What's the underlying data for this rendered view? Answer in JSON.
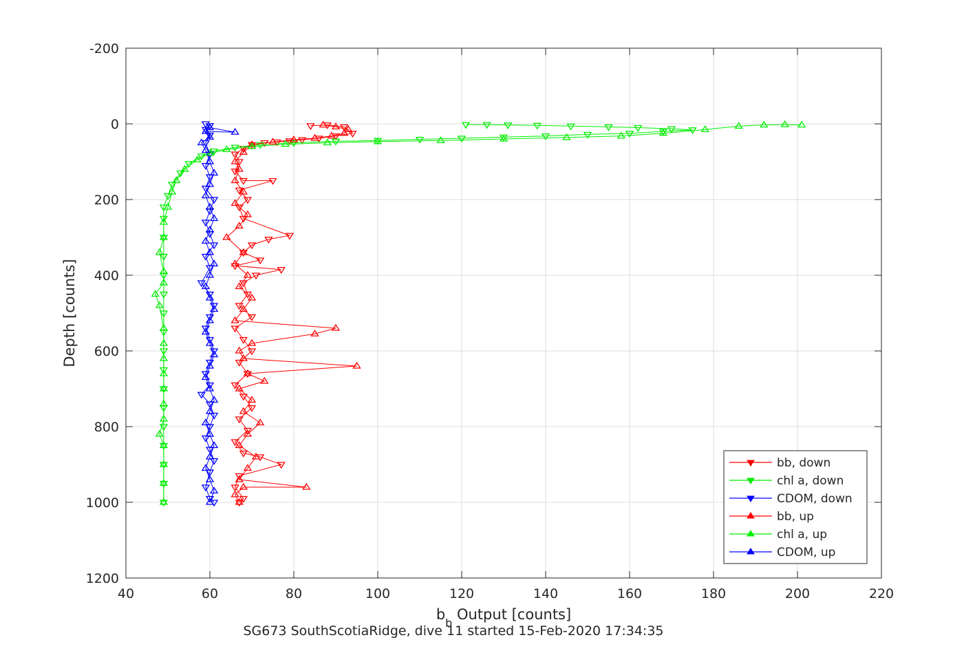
{
  "chart_data": {
    "type": "scatter",
    "xlabel": "b",
    "xlabel_sub": "b",
    "xlabel_rest": " Output [counts]",
    "ylabel": "Depth [counts]",
    "caption": "SG673 SouthScotiaRidge, dive 11 started 15-Feb-2020 17:34:35",
    "xlim": [
      40,
      220
    ],
    "ylim": [
      -200,
      1200
    ],
    "y_reversed": true,
    "grid": true,
    "legend_placement": "bottom-right",
    "x_ticks": [
      "40",
      "60",
      "80",
      "100",
      "120",
      "140",
      "160",
      "180",
      "200",
      "220"
    ],
    "y_ticks": [
      "-200",
      "0",
      "200",
      "400",
      "600",
      "800",
      "1000",
      "1200"
    ],
    "series": [
      {
        "name": "bb, down",
        "color": "#ff0000",
        "marker": "triangle-down",
        "points": [
          [
            84,
            5
          ],
          [
            88,
            3
          ],
          [
            92,
            8
          ],
          [
            94,
            25
          ],
          [
            90,
            32
          ],
          [
            86,
            38
          ],
          [
            82,
            42
          ],
          [
            79,
            45
          ],
          [
            76,
            48
          ],
          [
            73,
            50
          ],
          [
            70,
            55
          ],
          [
            68,
            65
          ],
          [
            66,
            80
          ],
          [
            67,
            100
          ],
          [
            66,
            125
          ],
          [
            68,
            150
          ],
          [
            75,
            150
          ],
          [
            67,
            175
          ],
          [
            69,
            200
          ],
          [
            67,
            220
          ],
          [
            68,
            250
          ],
          [
            79,
            295
          ],
          [
            74,
            305
          ],
          [
            70,
            320
          ],
          [
            68,
            340
          ],
          [
            72,
            360
          ],
          [
            66,
            375
          ],
          [
            77,
            385
          ],
          [
            71,
            400
          ],
          [
            68,
            420
          ],
          [
            69,
            450
          ],
          [
            67,
            480
          ],
          [
            70,
            510
          ],
          [
            66,
            540
          ],
          [
            68,
            570
          ],
          [
            70,
            600
          ],
          [
            67,
            630
          ],
          [
            69,
            660
          ],
          [
            66,
            690
          ],
          [
            68,
            720
          ],
          [
            70,
            750
          ],
          [
            67,
            780
          ],
          [
            69,
            810
          ],
          [
            66,
            840
          ],
          [
            68,
            870
          ],
          [
            72,
            880
          ],
          [
            77,
            900
          ],
          [
            67,
            930
          ],
          [
            66,
            960
          ],
          [
            68,
            990
          ],
          [
            67,
            1000
          ]
        ]
      },
      {
        "name": "chl a, down",
        "color": "#00ee00",
        "marker": "triangle-down",
        "points": [
          [
            121,
            2
          ],
          [
            126,
            2
          ],
          [
            131,
            3
          ],
          [
            138,
            4
          ],
          [
            146,
            6
          ],
          [
            155,
            8
          ],
          [
            162,
            10
          ],
          [
            170,
            13
          ],
          [
            175,
            16
          ],
          [
            168,
            20
          ],
          [
            160,
            25
          ],
          [
            150,
            28
          ],
          [
            140,
            32
          ],
          [
            130,
            35
          ],
          [
            120,
            38
          ],
          [
            110,
            41
          ],
          [
            100,
            44
          ],
          [
            90,
            46
          ],
          [
            80,
            50
          ],
          [
            72,
            55
          ],
          [
            66,
            62
          ],
          [
            61,
            72
          ],
          [
            58,
            85
          ],
          [
            55,
            105
          ],
          [
            53,
            130
          ],
          [
            51,
            160
          ],
          [
            50,
            190
          ],
          [
            49,
            220
          ],
          [
            49,
            250
          ],
          [
            49,
            300
          ],
          [
            49,
            350
          ],
          [
            49,
            400
          ],
          [
            49,
            450
          ],
          [
            49,
            500
          ],
          [
            49,
            550
          ],
          [
            49,
            600
          ],
          [
            49,
            650
          ],
          [
            49,
            700
          ],
          [
            49,
            750
          ],
          [
            49,
            800
          ],
          [
            49,
            850
          ],
          [
            49,
            900
          ],
          [
            49,
            950
          ],
          [
            49,
            1000
          ]
        ]
      },
      {
        "name": "CDOM, down",
        "color": "#0000ff",
        "marker": "triangle-down",
        "points": [
          [
            59,
            0
          ],
          [
            60,
            5
          ],
          [
            59,
            15
          ],
          [
            60,
            30
          ],
          [
            59,
            50
          ],
          [
            60,
            80
          ],
          [
            59,
            110
          ],
          [
            60,
            140
          ],
          [
            59,
            170
          ],
          [
            61,
            200
          ],
          [
            60,
            230
          ],
          [
            59,
            260
          ],
          [
            60,
            290
          ],
          [
            61,
            320
          ],
          [
            59,
            350
          ],
          [
            60,
            380
          ],
          [
            58,
            420
          ],
          [
            60,
            450
          ],
          [
            61,
            480
          ],
          [
            60,
            510
          ],
          [
            59,
            540
          ],
          [
            60,
            570
          ],
          [
            61,
            600
          ],
          [
            60,
            630
          ],
          [
            59,
            660
          ],
          [
            60,
            690
          ],
          [
            58,
            715
          ],
          [
            60,
            740
          ],
          [
            61,
            770
          ],
          [
            60,
            800
          ],
          [
            59,
            830
          ],
          [
            60,
            860
          ],
          [
            61,
            890
          ],
          [
            60,
            920
          ],
          [
            59,
            960
          ],
          [
            60,
            990
          ],
          [
            61,
            1000
          ]
        ]
      },
      {
        "name": "bb, up",
        "color": "#ff0000",
        "marker": "triangle-up",
        "points": [
          [
            67,
            1000
          ],
          [
            66,
            980
          ],
          [
            68,
            960
          ],
          [
            83,
            960
          ],
          [
            67,
            940
          ],
          [
            69,
            910
          ],
          [
            71,
            880
          ],
          [
            67,
            850
          ],
          [
            69,
            820
          ],
          [
            72,
            790
          ],
          [
            68,
            760
          ],
          [
            70,
            730
          ],
          [
            67,
            700
          ],
          [
            73,
            680
          ],
          [
            69,
            660
          ],
          [
            95,
            640
          ],
          [
            68,
            620
          ],
          [
            67,
            600
          ],
          [
            70,
            580
          ],
          [
            85,
            555
          ],
          [
            90,
            540
          ],
          [
            66,
            520
          ],
          [
            68,
            490
          ],
          [
            70,
            460
          ],
          [
            67,
            430
          ],
          [
            69,
            400
          ],
          [
            66,
            370
          ],
          [
            68,
            340
          ],
          [
            64,
            300
          ],
          [
            67,
            270
          ],
          [
            69,
            240
          ],
          [
            66,
            210
          ],
          [
            68,
            180
          ],
          [
            66,
            150
          ],
          [
            67,
            120
          ],
          [
            66,
            100
          ],
          [
            68,
            75
          ],
          [
            70,
            55
          ],
          [
            75,
            48
          ],
          [
            80,
            42
          ],
          [
            85,
            38
          ],
          [
            89,
            32
          ],
          [
            92,
            25
          ],
          [
            93,
            15
          ],
          [
            90,
            8
          ],
          [
            87,
            3
          ]
        ]
      },
      {
        "name": "chl a, up",
        "color": "#00ee00",
        "marker": "triangle-up",
        "points": [
          [
            49,
            1000
          ],
          [
            49,
            950
          ],
          [
            49,
            900
          ],
          [
            49,
            850
          ],
          [
            48,
            820
          ],
          [
            49,
            780
          ],
          [
            49,
            740
          ],
          [
            49,
            700
          ],
          [
            49,
            660
          ],
          [
            49,
            620
          ],
          [
            49,
            580
          ],
          [
            49,
            540
          ],
          [
            48,
            480
          ],
          [
            47,
            450
          ],
          [
            49,
            420
          ],
          [
            49,
            390
          ],
          [
            48,
            340
          ],
          [
            49,
            300
          ],
          [
            49,
            260
          ],
          [
            50,
            220
          ],
          [
            51,
            180
          ],
          [
            52,
            150
          ],
          [
            54,
            120
          ],
          [
            57,
            95
          ],
          [
            60,
            78
          ],
          [
            64,
            68
          ],
          [
            70,
            60
          ],
          [
            78,
            54
          ],
          [
            88,
            50
          ],
          [
            100,
            47
          ],
          [
            115,
            44
          ],
          [
            130,
            40
          ],
          [
            145,
            36
          ],
          [
            158,
            32
          ],
          [
            168,
            25
          ],
          [
            178,
            15
          ],
          [
            186,
            6
          ],
          [
            192,
            3
          ],
          [
            197,
            2
          ],
          [
            201,
            3
          ]
        ]
      },
      {
        "name": "CDOM, up",
        "color": "#0000ff",
        "marker": "triangle-up",
        "points": [
          [
            60,
            1000
          ],
          [
            61,
            970
          ],
          [
            60,
            940
          ],
          [
            59,
            910
          ],
          [
            60,
            880
          ],
          [
            61,
            850
          ],
          [
            60,
            820
          ],
          [
            59,
            790
          ],
          [
            60,
            760
          ],
          [
            61,
            730
          ],
          [
            60,
            700
          ],
          [
            59,
            670
          ],
          [
            60,
            640
          ],
          [
            61,
            610
          ],
          [
            60,
            580
          ],
          [
            59,
            550
          ],
          [
            60,
            520
          ],
          [
            61,
            490
          ],
          [
            60,
            460
          ],
          [
            59,
            430
          ],
          [
            60,
            400
          ],
          [
            61,
            370
          ],
          [
            60,
            340
          ],
          [
            59,
            310
          ],
          [
            60,
            280
          ],
          [
            61,
            250
          ],
          [
            60,
            220
          ],
          [
            59,
            190
          ],
          [
            60,
            160
          ],
          [
            61,
            130
          ],
          [
            60,
            100
          ],
          [
            59,
            70
          ],
          [
            58,
            50
          ],
          [
            60,
            35
          ],
          [
            59,
            20
          ],
          [
            66,
            22
          ],
          [
            60,
            10
          ]
        ]
      }
    ]
  }
}
